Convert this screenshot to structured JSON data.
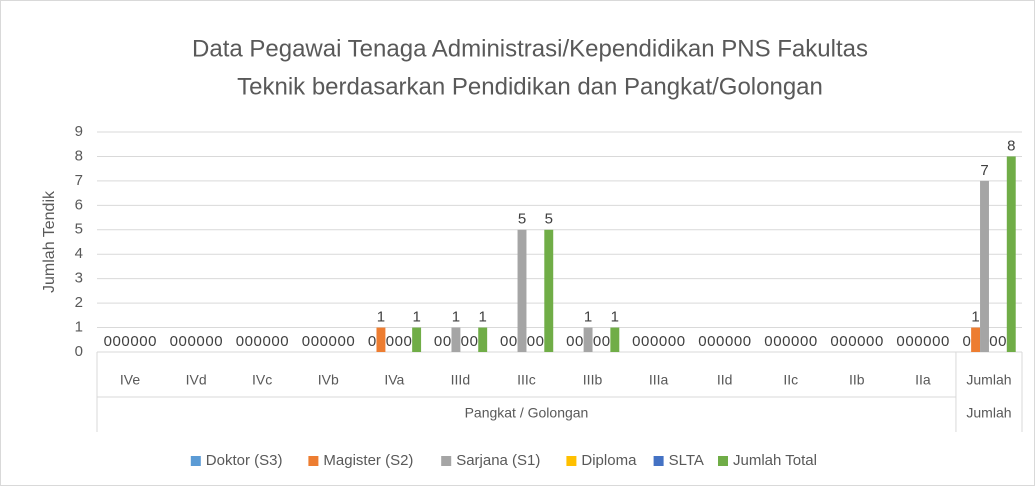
{
  "chart_data": {
    "type": "bar",
    "title": [
      "Data Pegawai Tenaga Administrasi/Kependidikan PNS Fakultas",
      "Teknik berdasarkan Pendidikan dan Pangkat/Golongan"
    ],
    "y_label": "Jumlah Tendik",
    "categories": [
      "IVe",
      "IVd",
      "IVc",
      "IVb",
      "IVa",
      "IIId",
      "IIIc",
      "IIIb",
      "IIIa",
      "IId",
      "IIc",
      "IIb",
      "IIa",
      "Jumlah"
    ],
    "groups": [
      {
        "label": "Pangkat / Golongan",
        "span": 13
      },
      {
        "label": "Jumlah",
        "span": 1
      }
    ],
    "series": [
      {
        "name": "Doktor (S3)",
        "color": "#5b9bd5",
        "values": [
          0,
          0,
          0,
          0,
          0,
          0,
          0,
          0,
          0,
          0,
          0,
          0,
          0,
          0
        ]
      },
      {
        "name": "Magister (S2)",
        "color": "#ed7d31",
        "values": [
          0,
          0,
          0,
          0,
          1,
          0,
          0,
          0,
          0,
          0,
          0,
          0,
          0,
          1
        ]
      },
      {
        "name": "Sarjana (S1)",
        "color": "#a5a5a5",
        "values": [
          0,
          0,
          0,
          0,
          0,
          1,
          5,
          1,
          0,
          0,
          0,
          0,
          0,
          7
        ]
      },
      {
        "name": "Diploma",
        "color": "#ffc000",
        "values": [
          0,
          0,
          0,
          0,
          0,
          0,
          0,
          0,
          0,
          0,
          0,
          0,
          0,
          0
        ]
      },
      {
        "name": "SLTA",
        "color": "#4472c4",
        "values": [
          0,
          0,
          0,
          0,
          0,
          0,
          0,
          0,
          0,
          0,
          0,
          0,
          0,
          0
        ]
      },
      {
        "name": "Jumlah Total",
        "color": "#70ad47",
        "values": [
          0,
          0,
          0,
          0,
          1,
          1,
          5,
          1,
          0,
          0,
          0,
          0,
          0,
          8
        ]
      }
    ],
    "ylim": [
      0,
      9
    ],
    "yticks": [
      0,
      1,
      2,
      3,
      4,
      5,
      6,
      7,
      8,
      9
    ],
    "grid": true,
    "legend": "bottom",
    "data_labels": true
  }
}
